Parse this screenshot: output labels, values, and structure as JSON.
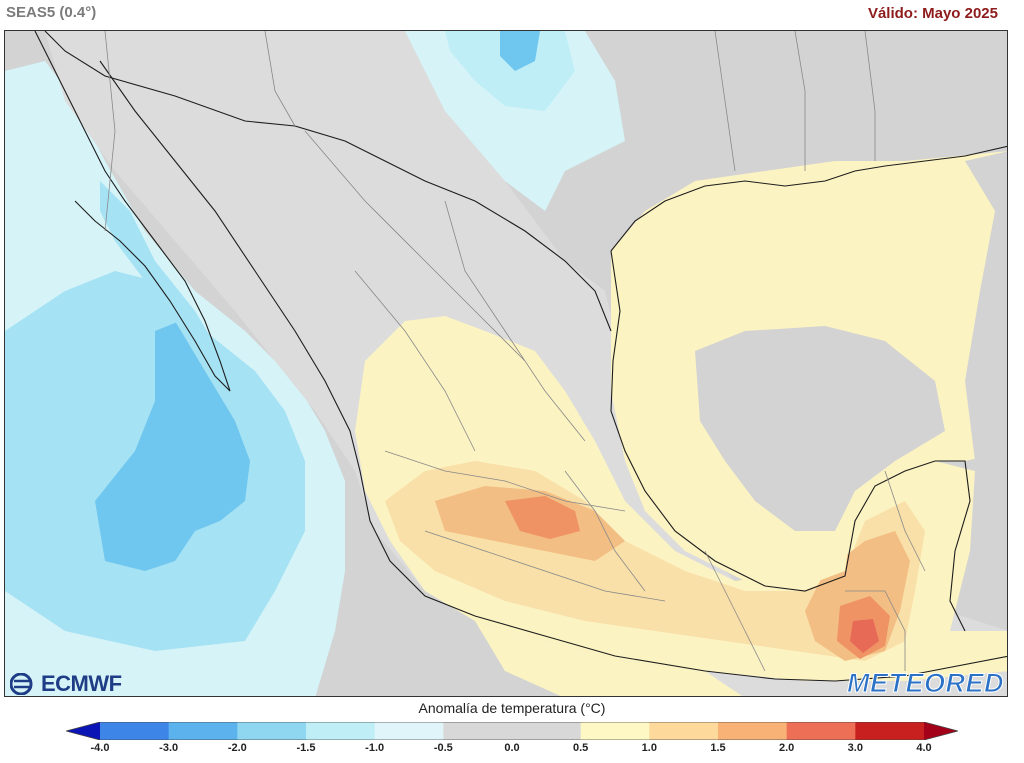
{
  "header": {
    "model": "SEAS5 (0.4°)",
    "valid": "Válido: Mayo 2025"
  },
  "logos": {
    "left": "ECMWF",
    "right": "METEORED"
  },
  "legend": {
    "title": "Anomalía de temperatura (°C)",
    "ticks": [
      "-4.0",
      "-3.0",
      "-2.0",
      "-1.5",
      "-1.0",
      "-0.5",
      "0.0",
      "0.5",
      "1.0",
      "1.5",
      "2.0",
      "3.0",
      "4.0"
    ],
    "colors": [
      "#1a33d9",
      "#3d86e8",
      "#5cb2ec",
      "#8fd6f1",
      "#bfeef7",
      "#dff5f9",
      "#d8d8d8",
      "#d8d8d8",
      "#fef8c4",
      "#fdd99b",
      "#f8b276",
      "#ed6f55",
      "#c8201f",
      "#a3001a"
    ],
    "left_arrow_color": "#0b14b5",
    "right_arrow_color": "#a3001a"
  },
  "palette": {
    "ocean_neutral": "#d3d3d3",
    "land_neutral": "#dcdcdc",
    "cool_strong": "#6fc6ee",
    "cool_mid": "#a5e2f4",
    "cool_light": "#d6f4f8",
    "warm_light": "#fcf3c2",
    "warm_mid": "#f9dfa8",
    "warm_strong": "#f3be83",
    "hot": "#ef9264",
    "very_hot": "#e76a56",
    "border": "#1d1d1d",
    "state_border": "#888888"
  },
  "icons": {
    "ecmwf_logo": "ecmwf-swirl-icon"
  }
}
